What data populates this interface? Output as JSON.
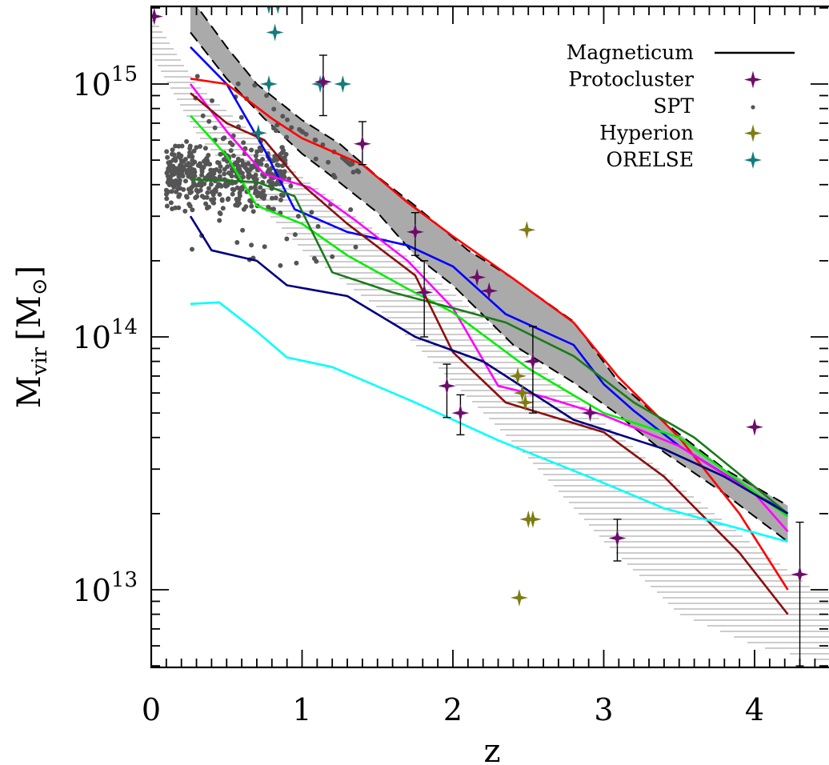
{
  "chart_data": {
    "type": "scatter",
    "xlabel": "z",
    "ylabel": "M",
    "ylabel_sub": "vir",
    "ylabel_unit": "M",
    "ylabel_unit_sub": "⊙",
    "xlim": [
      0,
      4.4
    ],
    "ylim": [
      5000000000000.0,
      2000000000000000.0
    ],
    "yscale": "log",
    "x_ticks": [
      {
        "value": 0,
        "label": "0"
      },
      {
        "value": 1,
        "label": "1"
      },
      {
        "value": 2,
        "label": "2"
      },
      {
        "value": 3,
        "label": "3"
      },
      {
        "value": 4,
        "label": "4"
      }
    ],
    "y_ticks": [
      {
        "value": 10000000000000.0,
        "base": "10",
        "exp": "13"
      },
      {
        "value": 100000000000000.0,
        "base": "10",
        "exp": "14"
      },
      {
        "value": 1000000000000000.0,
        "base": "10",
        "exp": "15"
      }
    ],
    "legend_position": "top-right",
    "legend": [
      {
        "label": "Magneticum",
        "marker": "line",
        "color": "#000000"
      },
      {
        "label": "Protocluster",
        "marker": "star",
        "color": "#6b0d6b"
      },
      {
        "label": "SPT",
        "marker": "dot",
        "color": "#555555"
      },
      {
        "label": "Hyperion",
        "marker": "star",
        "color": "#7d7d14"
      },
      {
        "label": "ORELSE",
        "marker": "star",
        "color": "#147c7c"
      }
    ],
    "band": {
      "color": "#aaaaaa",
      "upper": [
        [
          0.26,
          2200000000000000.0
        ],
        [
          0.5,
          1400000000000000.0
        ],
        [
          0.7,
          1000000000000000.0
        ],
        [
          1.0,
          720000000000000.0
        ],
        [
          1.25,
          580000000000000.0
        ],
        [
          1.5,
          430000000000000.0
        ],
        [
          1.75,
          330000000000000.0
        ],
        [
          2.1,
          220000000000000.0
        ],
        [
          2.4,
          170000000000000.0
        ],
        [
          2.8,
          115000000000000.0
        ],
        [
          3.1,
          66000000000000.0
        ],
        [
          3.4,
          46000000000000.0
        ],
        [
          3.8,
          30000000000000.0
        ],
        [
          4.22,
          21500000000000.0
        ]
      ],
      "lower": [
        [
          0.26,
          1600000000000000.0
        ],
        [
          0.5,
          1050000000000000.0
        ],
        [
          0.75,
          730000000000000.0
        ],
        [
          1.0,
          530000000000000.0
        ],
        [
          1.2,
          430000000000000.0
        ],
        [
          1.5,
          310000000000000.0
        ],
        [
          1.75,
          210000000000000.0
        ],
        [
          2.0,
          160000000000000.0
        ],
        [
          2.4,
          93000000000000.0
        ],
        [
          2.8,
          66000000000000.0
        ],
        [
          3.1,
          49000000000000.0
        ],
        [
          3.4,
          35000000000000.0
        ],
        [
          3.8,
          24000000000000.0
        ],
        [
          4.22,
          15500000000000.0
        ]
      ]
    },
    "hatch": {
      "color": "#9a9a9a",
      "upper": [
        [
          0.0,
          1900000000000000.0
        ],
        [
          0.3,
          1000000000000000.0
        ],
        [
          0.7,
          620000000000000.0
        ],
        [
          1.0,
          430000000000000.0
        ],
        [
          1.5,
          260000000000000.0
        ],
        [
          2.0,
          150000000000000.0
        ],
        [
          2.5,
          84000000000000.0
        ],
        [
          3.0,
          46000000000000.0
        ],
        [
          3.5,
          26000000000000.0
        ],
        [
          4.0,
          15000000000000.0
        ],
        [
          4.4,
          10000000000000.0
        ]
      ],
      "lower": [
        [
          0.0,
          1300000000000000.0
        ],
        [
          0.3,
          630000000000000.0
        ],
        [
          0.7,
          340000000000000.0
        ],
        [
          1.0,
          220000000000000.0
        ],
        [
          1.5,
          130000000000000.0
        ],
        [
          2.0,
          66000000000000.0
        ],
        [
          2.5,
          33000000000000.0
        ],
        [
          3.0,
          15500000000000.0
        ],
        [
          3.5,
          8000000000000.0
        ],
        [
          4.0,
          6000000000000.0
        ],
        [
          4.4,
          5300000000000.0
        ]
      ]
    },
    "series": [
      {
        "color": "#0000ff",
        "points": [
          [
            0.26,
            1400000000000000.0
          ],
          [
            0.5,
            1000000000000000.0
          ],
          [
            0.75,
            550000000000000.0
          ],
          [
            0.95,
            320000000000000.0
          ],
          [
            1.3,
            260000000000000.0
          ],
          [
            1.7,
            230000000000000.0
          ],
          [
            2.0,
            190000000000000.0
          ],
          [
            2.35,
            123000000000000.0
          ],
          [
            2.8,
            93000000000000.0
          ],
          [
            3.0,
            65000000000000.0
          ],
          [
            3.2,
            51000000000000.0
          ],
          [
            3.5,
            37000000000000.0
          ],
          [
            4.22,
            20000000000000.0
          ]
        ]
      },
      {
        "color": "#ff0000",
        "points": [
          [
            0.26,
            1050000000000000.0
          ],
          [
            0.5,
            1000000000000000.0
          ],
          [
            0.8,
            730000000000000.0
          ],
          [
            1.0,
            610000000000000.0
          ],
          [
            1.4,
            480000000000000.0
          ],
          [
            1.7,
            340000000000000.0
          ],
          [
            2.0,
            250000000000000.0
          ],
          [
            2.4,
            170000000000000.0
          ],
          [
            2.8,
            114000000000000.0
          ],
          [
            3.1,
            69000000000000.0
          ],
          [
            3.5,
            40000000000000.0
          ],
          [
            3.9,
            20000000000000.0
          ],
          [
            4.22,
            10000000000000.0
          ]
        ]
      },
      {
        "color": "#ff00ff",
        "points": [
          [
            0.26,
            1000000000000000.0
          ],
          [
            0.5,
            650000000000000.0
          ],
          [
            0.75,
            440000000000000.0
          ],
          [
            1.05,
            390000000000000.0
          ],
          [
            1.35,
            290000000000000.0
          ],
          [
            1.7,
            200000000000000.0
          ],
          [
            2.0,
            130000000000000.0
          ],
          [
            2.3,
            64000000000000.0
          ],
          [
            2.6,
            58000000000000.0
          ],
          [
            3.0,
            49000000000000.0
          ],
          [
            3.5,
            37000000000000.0
          ],
          [
            4.0,
            24000000000000.0
          ],
          [
            4.22,
            17000000000000.0
          ]
        ]
      },
      {
        "color": "#00ee00",
        "points": [
          [
            0.26,
            750000000000000.0
          ],
          [
            0.5,
            520000000000000.0
          ],
          [
            0.7,
            330000000000000.0
          ],
          [
            1.0,
            280000000000000.0
          ],
          [
            1.3,
            210000000000000.0
          ],
          [
            1.7,
            155000000000000.0
          ],
          [
            2.0,
            125000000000000.0
          ],
          [
            2.5,
            75000000000000.0
          ],
          [
            3.0,
            50000000000000.0
          ],
          [
            3.5,
            40000000000000.0
          ],
          [
            4.22,
            19500000000000.0
          ]
        ]
      },
      {
        "color": "#1a7a1a",
        "points": [
          [
            0.26,
            420000000000000.0
          ],
          [
            0.7,
            410000000000000.0
          ],
          [
            0.95,
            360000000000000.0
          ],
          [
            1.2,
            180000000000000.0
          ],
          [
            1.6,
            150000000000000.0
          ],
          [
            2.0,
            130000000000000.0
          ],
          [
            2.35,
            114000000000000.0
          ],
          [
            2.8,
            84000000000000.0
          ],
          [
            3.2,
            55000000000000.0
          ],
          [
            3.6,
            40000000000000.0
          ],
          [
            4.22,
            20000000000000.0
          ]
        ]
      },
      {
        "color": "#8b1010",
        "points": [
          [
            0.26,
            920000000000000.0
          ],
          [
            0.5,
            700000000000000.0
          ],
          [
            0.75,
            600000000000000.0
          ],
          [
            1.0,
            400000000000000.0
          ],
          [
            1.3,
            280000000000000.0
          ],
          [
            1.75,
            175000000000000.0
          ],
          [
            2.0,
            87000000000000.0
          ],
          [
            2.35,
            55000000000000.0
          ],
          [
            3.0,
            42000000000000.0
          ],
          [
            3.4,
            28000000000000.0
          ],
          [
            3.9,
            14000000000000.0
          ],
          [
            4.22,
            8000000000000.0
          ]
        ]
      },
      {
        "color": "#000080",
        "points": [
          [
            0.26,
            300000000000000.0
          ],
          [
            0.4,
            220000000000000.0
          ],
          [
            0.7,
            200000000000000.0
          ],
          [
            0.9,
            160000000000000.0
          ],
          [
            1.3,
            145000000000000.0
          ],
          [
            1.75,
            100000000000000.0
          ],
          [
            2.2,
            80000000000000.0
          ],
          [
            2.8,
            47000000000000.0
          ],
          [
            3.4,
            36000000000000.0
          ],
          [
            3.8,
            28000000000000.0
          ],
          [
            4.22,
            20000000000000.0
          ]
        ]
      },
      {
        "color": "#00ffff",
        "points": [
          [
            0.26,
            135000000000000.0
          ],
          [
            0.45,
            137000000000000.0
          ],
          [
            0.7,
            105000000000000.0
          ],
          [
            0.9,
            83000000000000.0
          ],
          [
            1.2,
            76000000000000.0
          ],
          [
            1.75,
            55000000000000.0
          ],
          [
            2.3,
            39000000000000.0
          ],
          [
            2.9,
            28000000000000.0
          ],
          [
            3.4,
            21000000000000.0
          ],
          [
            4.22,
            15500000000000.0
          ]
        ]
      }
    ],
    "protocluster": [
      {
        "x": 0.02,
        "y": 1850000000000000.0
      },
      {
        "x": 1.14,
        "y": 1020000000000000.0,
        "ylo": 750000000000000.0,
        "yhi": 1300000000000000.0
      },
      {
        "x": 1.4,
        "y": 580000000000000.0,
        "ylo": 480000000000000.0,
        "yhi": 710000000000000.0
      },
      {
        "x": 1.75,
        "y": 260000000000000.0,
        "ylo": 210000000000000.0,
        "yhi": 310000000000000.0
      },
      {
        "x": 1.81,
        "y": 150000000000000.0,
        "ylo": 100000000000000.0,
        "yhi": 200000000000000.0
      },
      {
        "x": 1.96,
        "y": 64000000000000.0,
        "ylo": 48000000000000.0,
        "yhi": 78000000000000.0
      },
      {
        "x": 2.05,
        "y": 50000000000000.0,
        "ylo": 41000000000000.0,
        "yhi": 59000000000000.0
      },
      {
        "x": 2.16,
        "y": 172000000000000.0
      },
      {
        "x": 2.24,
        "y": 152000000000000.0
      },
      {
        "x": 2.53,
        "y": 80000000000000.0,
        "ylo": 50000000000000.0,
        "yhi": 110000000000000.0
      },
      {
        "x": 2.91,
        "y": 50000000000000.0
      },
      {
        "x": 3.09,
        "y": 16000000000000.0,
        "ylo": 13000000000000.0,
        "yhi": 19000000000000.0
      },
      {
        "x": 4.0,
        "y": 44000000000000.0
      },
      {
        "x": 4.3,
        "y": 11500000000000.0,
        "ylo": 5000000000000.0,
        "yhi": 18500000000000.0
      }
    ],
    "hyperion": [
      {
        "x": 2.43,
        "y": 70000000000000.0
      },
      {
        "x": 2.46,
        "y": 60000000000000.0
      },
      {
        "x": 2.48,
        "y": 55000000000000.0
      },
      {
        "x": 2.49,
        "y": 265000000000000.0
      },
      {
        "x": 2.5,
        "y": 19000000000000.0
      },
      {
        "x": 2.53,
        "y": 19000000000000.0
      },
      {
        "x": 2.44,
        "y": 9300000000000.0
      }
    ],
    "orelse": [
      {
        "x": 0.78,
        "y": 2050000000000000.0
      },
      {
        "x": 0.84,
        "y": 2050000000000000.0
      },
      {
        "x": 0.82,
        "y": 1600000000000000.0
      },
      {
        "x": 0.78,
        "y": 1000000000000000.0
      },
      {
        "x": 1.12,
        "y": 1000000000000000.0
      },
      {
        "x": 1.27,
        "y": 1000000000000000.0
      },
      {
        "x": 0.71,
        "y": 640000000000000.0
      }
    ],
    "spt_cloud": {
      "color": "#555555",
      "count": 520,
      "x_range": [
        0.1,
        1.4
      ],
      "core_y_range": [
        290000000000000.0,
        650000000000000.0
      ],
      "upper_y_range": [
        650000000000000.0,
        1100000000000000.0
      ]
    }
  }
}
